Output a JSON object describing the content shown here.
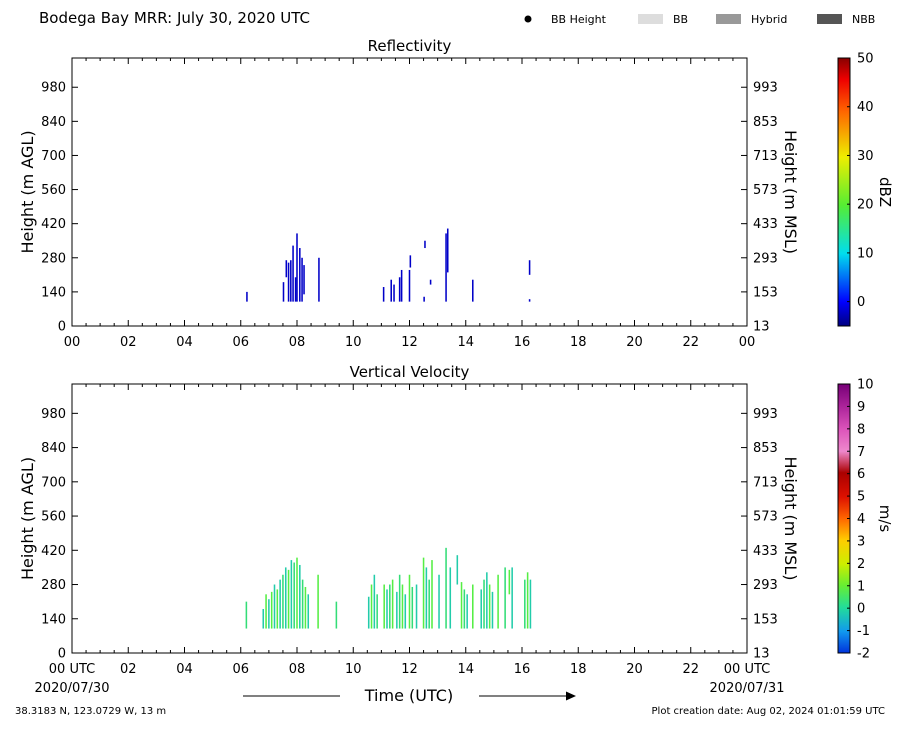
{
  "header": {
    "title": "Bodega Bay MRR:  July 30, 2020 UTC",
    "legend": [
      {
        "label": "BB Height",
        "kind": "dot",
        "color": "#000000"
      },
      {
        "label": "BB",
        "kind": "box",
        "color": "#dddddd"
      },
      {
        "label": "Hybrid",
        "kind": "box",
        "color": "#999999"
      },
      {
        "label": "NBB",
        "kind": "box",
        "color": "#555555"
      }
    ]
  },
  "footer": {
    "location": "38.3183 N, 123.0729 W, 13 m",
    "creation": "Plot creation date: Aug 02, 2024 01:01:59 UTC",
    "start_date": "2020/07/30",
    "end_date": "2020/07/31",
    "time_label": "Time (UTC)"
  },
  "chart_data": [
    {
      "type": "heatmap",
      "title": "Reflectivity",
      "ylabel": "Height (m AGL)",
      "y2label": "Height (m MSL)",
      "xlim": [
        0,
        24
      ],
      "ylim": [
        0,
        1100
      ],
      "xticks": [
        "00",
        "02",
        "04",
        "06",
        "08",
        "10",
        "12",
        "14",
        "16",
        "18",
        "20",
        "22",
        "00"
      ],
      "yticks": [
        0,
        140,
        280,
        420,
        560,
        700,
        840,
        980
      ],
      "y2ticks": [
        13,
        153,
        293,
        433,
        573,
        713,
        853,
        993
      ],
      "colorbar": {
        "label": "dBZ",
        "ticks": [
          "0",
          "10",
          "20",
          "30",
          "40",
          "50"
        ],
        "range": [
          -5,
          50
        ]
      },
      "series": [
        {
          "x": 6.22,
          "y0": 100,
          "y1": 140,
          "color": "#0000c8"
        },
        {
          "x": 7.52,
          "y0": 100,
          "y1": 180,
          "color": "#0000c8"
        },
        {
          "x": 7.62,
          "y0": 200,
          "y1": 270,
          "color": "#0000c8"
        },
        {
          "x": 7.7,
          "y0": 100,
          "y1": 260,
          "color": "#0000c8"
        },
        {
          "x": 7.78,
          "y0": 100,
          "y1": 270,
          "color": "#0000c8"
        },
        {
          "x": 7.86,
          "y0": 100,
          "y1": 330,
          "color": "#0000c8"
        },
        {
          "x": 7.95,
          "y0": 100,
          "y1": 200,
          "color": "#0000c8"
        },
        {
          "x": 8.0,
          "y0": 100,
          "y1": 380,
          "color": "#0000c8"
        },
        {
          "x": 8.1,
          "y0": 100,
          "y1": 320,
          "color": "#0000c8"
        },
        {
          "x": 8.18,
          "y0": 100,
          "y1": 280,
          "color": "#0000c8"
        },
        {
          "x": 8.25,
          "y0": 130,
          "y1": 250,
          "color": "#0000c8"
        },
        {
          "x": 8.78,
          "y0": 100,
          "y1": 280,
          "color": "#0000c8"
        },
        {
          "x": 11.08,
          "y0": 100,
          "y1": 160,
          "color": "#0000c8"
        },
        {
          "x": 11.35,
          "y0": 100,
          "y1": 190,
          "color": "#0000c8"
        },
        {
          "x": 11.45,
          "y0": 100,
          "y1": 170,
          "color": "#0000c8"
        },
        {
          "x": 11.65,
          "y0": 100,
          "y1": 200,
          "color": "#0000c8"
        },
        {
          "x": 11.72,
          "y0": 100,
          "y1": 230,
          "color": "#0000c8"
        },
        {
          "x": 12.0,
          "y0": 100,
          "y1": 230,
          "color": "#0000c8"
        },
        {
          "x": 12.03,
          "y0": 240,
          "y1": 290,
          "color": "#0000c8"
        },
        {
          "x": 12.52,
          "y0": 100,
          "y1": 120,
          "color": "#0000c8"
        },
        {
          "x": 12.55,
          "y0": 320,
          "y1": 350,
          "color": "#0000c8"
        },
        {
          "x": 12.75,
          "y0": 170,
          "y1": 190,
          "color": "#0000c8"
        },
        {
          "x": 13.3,
          "y0": 100,
          "y1": 380,
          "color": "#0000c8"
        },
        {
          "x": 13.36,
          "y0": 220,
          "y1": 400,
          "color": "#0000c8"
        },
        {
          "x": 14.25,
          "y0": 100,
          "y1": 190,
          "color": "#0000c8"
        },
        {
          "x": 16.27,
          "y0": 210,
          "y1": 270,
          "color": "#0000c8"
        },
        {
          "x": 16.27,
          "y0": 100,
          "y1": 110,
          "color": "#0000c8"
        }
      ]
    },
    {
      "type": "heatmap",
      "title": "Vertical Velocity",
      "ylabel": "Height (m AGL)",
      "y2label": "Height (m MSL)",
      "xlim": [
        0,
        24
      ],
      "ylim": [
        0,
        1100
      ],
      "xticks": [
        "00 UTC",
        "02",
        "04",
        "06",
        "08",
        "10",
        "12",
        "14",
        "16",
        "18",
        "20",
        "22",
        "00 UTC"
      ],
      "yticks": [
        0,
        140,
        280,
        420,
        560,
        700,
        840,
        980
      ],
      "y2ticks": [
        13,
        153,
        293,
        433,
        573,
        713,
        853,
        993
      ],
      "colorbar": {
        "label": "m/s",
        "ticks": [
          "-2",
          "-1",
          "0",
          "1",
          "2",
          "3",
          "4",
          "5",
          "6",
          "7",
          "8",
          "9",
          "10"
        ],
        "range": [
          -2,
          10
        ]
      },
      "series": [
        {
          "x": 6.2,
          "y0": 100,
          "y1": 210,
          "color": "#33dd77"
        },
        {
          "x": 6.8,
          "y0": 100,
          "y1": 180,
          "color": "#22ccaa"
        },
        {
          "x": 6.9,
          "y0": 100,
          "y1": 240,
          "color": "#55ee44"
        },
        {
          "x": 7.0,
          "y0": 100,
          "y1": 220,
          "color": "#22ccaa"
        },
        {
          "x": 7.1,
          "y0": 100,
          "y1": 250,
          "color": "#55ee44"
        },
        {
          "x": 7.2,
          "y0": 100,
          "y1": 280,
          "color": "#22ccaa"
        },
        {
          "x": 7.3,
          "y0": 100,
          "y1": 260,
          "color": "#55ee44"
        },
        {
          "x": 7.4,
          "y0": 100,
          "y1": 300,
          "color": "#22ccaa"
        },
        {
          "x": 7.5,
          "y0": 100,
          "y1": 320,
          "color": "#33dd77"
        },
        {
          "x": 7.6,
          "y0": 100,
          "y1": 350,
          "color": "#22ccaa"
        },
        {
          "x": 7.7,
          "y0": 100,
          "y1": 340,
          "color": "#55ee44"
        },
        {
          "x": 7.8,
          "y0": 100,
          "y1": 380,
          "color": "#22ccaa"
        },
        {
          "x": 7.9,
          "y0": 100,
          "y1": 370,
          "color": "#33dd77"
        },
        {
          "x": 8.0,
          "y0": 100,
          "y1": 390,
          "color": "#55ee44"
        },
        {
          "x": 8.1,
          "y0": 100,
          "y1": 360,
          "color": "#22ccaa"
        },
        {
          "x": 8.2,
          "y0": 100,
          "y1": 300,
          "color": "#33dd77"
        },
        {
          "x": 8.3,
          "y0": 100,
          "y1": 270,
          "color": "#55ee44"
        },
        {
          "x": 8.4,
          "y0": 100,
          "y1": 240,
          "color": "#22ccaa"
        },
        {
          "x": 8.75,
          "y0": 100,
          "y1": 320,
          "color": "#55ee44"
        },
        {
          "x": 9.4,
          "y0": 100,
          "y1": 210,
          "color": "#33dd77"
        },
        {
          "x": 10.55,
          "y0": 100,
          "y1": 230,
          "color": "#22ccaa"
        },
        {
          "x": 10.65,
          "y0": 100,
          "y1": 280,
          "color": "#55ee44"
        },
        {
          "x": 10.75,
          "y0": 100,
          "y1": 320,
          "color": "#22ccaa"
        },
        {
          "x": 10.85,
          "y0": 100,
          "y1": 240,
          "color": "#33dd77"
        },
        {
          "x": 11.1,
          "y0": 100,
          "y1": 280,
          "color": "#55ee44"
        },
        {
          "x": 11.2,
          "y0": 100,
          "y1": 260,
          "color": "#22ccaa"
        },
        {
          "x": 11.3,
          "y0": 100,
          "y1": 280,
          "color": "#33dd77"
        },
        {
          "x": 11.4,
          "y0": 100,
          "y1": 300,
          "color": "#55ee44"
        },
        {
          "x": 11.55,
          "y0": 100,
          "y1": 250,
          "color": "#22ccaa"
        },
        {
          "x": 11.65,
          "y0": 100,
          "y1": 320,
          "color": "#33dd77"
        },
        {
          "x": 11.75,
          "y0": 100,
          "y1": 280,
          "color": "#55ee44"
        },
        {
          "x": 11.85,
          "y0": 100,
          "y1": 240,
          "color": "#22ccaa"
        },
        {
          "x": 12.0,
          "y0": 100,
          "y1": 320,
          "color": "#55ee44"
        },
        {
          "x": 12.1,
          "y0": 100,
          "y1": 270,
          "color": "#33dd77"
        },
        {
          "x": 12.25,
          "y0": 100,
          "y1": 280,
          "color": "#22ccaa"
        },
        {
          "x": 12.5,
          "y0": 100,
          "y1": 390,
          "color": "#55ee44"
        },
        {
          "x": 12.6,
          "y0": 100,
          "y1": 350,
          "color": "#22ccaa"
        },
        {
          "x": 12.7,
          "y0": 100,
          "y1": 300,
          "color": "#33dd77"
        },
        {
          "x": 12.8,
          "y0": 100,
          "y1": 380,
          "color": "#55ee44"
        },
        {
          "x": 13.05,
          "y0": 100,
          "y1": 320,
          "color": "#22ccaa"
        },
        {
          "x": 13.3,
          "y0": 100,
          "y1": 430,
          "color": "#33dd77"
        },
        {
          "x": 13.45,
          "y0": 100,
          "y1": 350,
          "color": "#22ccaa"
        },
        {
          "x": 13.7,
          "y0": 280,
          "y1": 400,
          "color": "#22ccaa"
        },
        {
          "x": 13.85,
          "y0": 100,
          "y1": 290,
          "color": "#55ee44"
        },
        {
          "x": 13.95,
          "y0": 100,
          "y1": 260,
          "color": "#33dd77"
        },
        {
          "x": 14.05,
          "y0": 100,
          "y1": 240,
          "color": "#22ccaa"
        },
        {
          "x": 14.25,
          "y0": 100,
          "y1": 280,
          "color": "#55ee44"
        },
        {
          "x": 14.55,
          "y0": 100,
          "y1": 260,
          "color": "#22ccaa"
        },
        {
          "x": 14.65,
          "y0": 100,
          "y1": 300,
          "color": "#33dd77"
        },
        {
          "x": 14.75,
          "y0": 100,
          "y1": 330,
          "color": "#22ccaa"
        },
        {
          "x": 14.85,
          "y0": 100,
          "y1": 280,
          "color": "#55ee44"
        },
        {
          "x": 14.95,
          "y0": 100,
          "y1": 250,
          "color": "#22ccaa"
        },
        {
          "x": 15.15,
          "y0": 100,
          "y1": 320,
          "color": "#55ee44"
        },
        {
          "x": 15.4,
          "y0": 100,
          "y1": 350,
          "color": "#33dd77"
        },
        {
          "x": 15.55,
          "y0": 240,
          "y1": 340,
          "color": "#55ee44"
        },
        {
          "x": 15.65,
          "y0": 100,
          "y1": 350,
          "color": "#22ccaa"
        },
        {
          "x": 16.1,
          "y0": 100,
          "y1": 300,
          "color": "#33dd77"
        },
        {
          "x": 16.2,
          "y0": 100,
          "y1": 330,
          "color": "#55ee44"
        },
        {
          "x": 16.3,
          "y0": 100,
          "y1": 300,
          "color": "#22ccaa"
        }
      ]
    }
  ]
}
